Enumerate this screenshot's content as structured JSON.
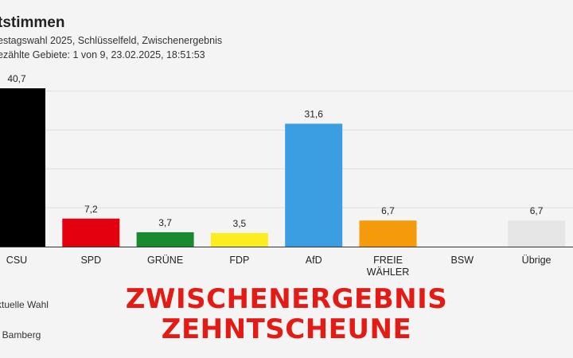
{
  "header": {
    "title": "tstimmen",
    "subtitle1": "estagswahl 2025, Schlüsselfeld, Zwischenergebnis",
    "subtitle2": "ezählte Gebiete: 1 von 9, 23.02.2025, 18:51:53"
  },
  "footer": {
    "legend": "ktuelle Wahl",
    "source": "t Bamberg"
  },
  "overlay": {
    "line1": "ZWISCHENERGEBNIS",
    "line2": "ZEHNTSCHEUNE"
  },
  "chart_data": {
    "type": "bar",
    "title": "tstimmen",
    "categories": [
      "CSU",
      "SPD",
      "GRÜNE",
      "FDP",
      "AfD",
      "FREIE WÄHLER",
      "BSW",
      "Übrige"
    ],
    "category_lines": [
      [
        "CSU"
      ],
      [
        "SPD"
      ],
      [
        "GRÜNE"
      ],
      [
        "FDP"
      ],
      [
        "AfD"
      ],
      [
        "FREIE",
        "WÄHLER"
      ],
      [
        "BSW"
      ],
      [
        "Übrige"
      ]
    ],
    "values": [
      40.7,
      7.2,
      3.7,
      3.5,
      31.6,
      6.7,
      null,
      6.7
    ],
    "labels": [
      "40,7",
      "7,2",
      "3,7",
      "3,5",
      "31,6",
      "6,7",
      "",
      "6,7"
    ],
    "colors": [
      "#000000",
      "#e3000f",
      "#1a8a2e",
      "#fcee1e",
      "#3b9ee3",
      "#f59a0a",
      "#7b2450",
      "#e6e6e6"
    ],
    "ylim": [
      0,
      40.7
    ],
    "gridlines": [
      10,
      20,
      30,
      40
    ],
    "xlabel": "",
    "ylabel": ""
  }
}
